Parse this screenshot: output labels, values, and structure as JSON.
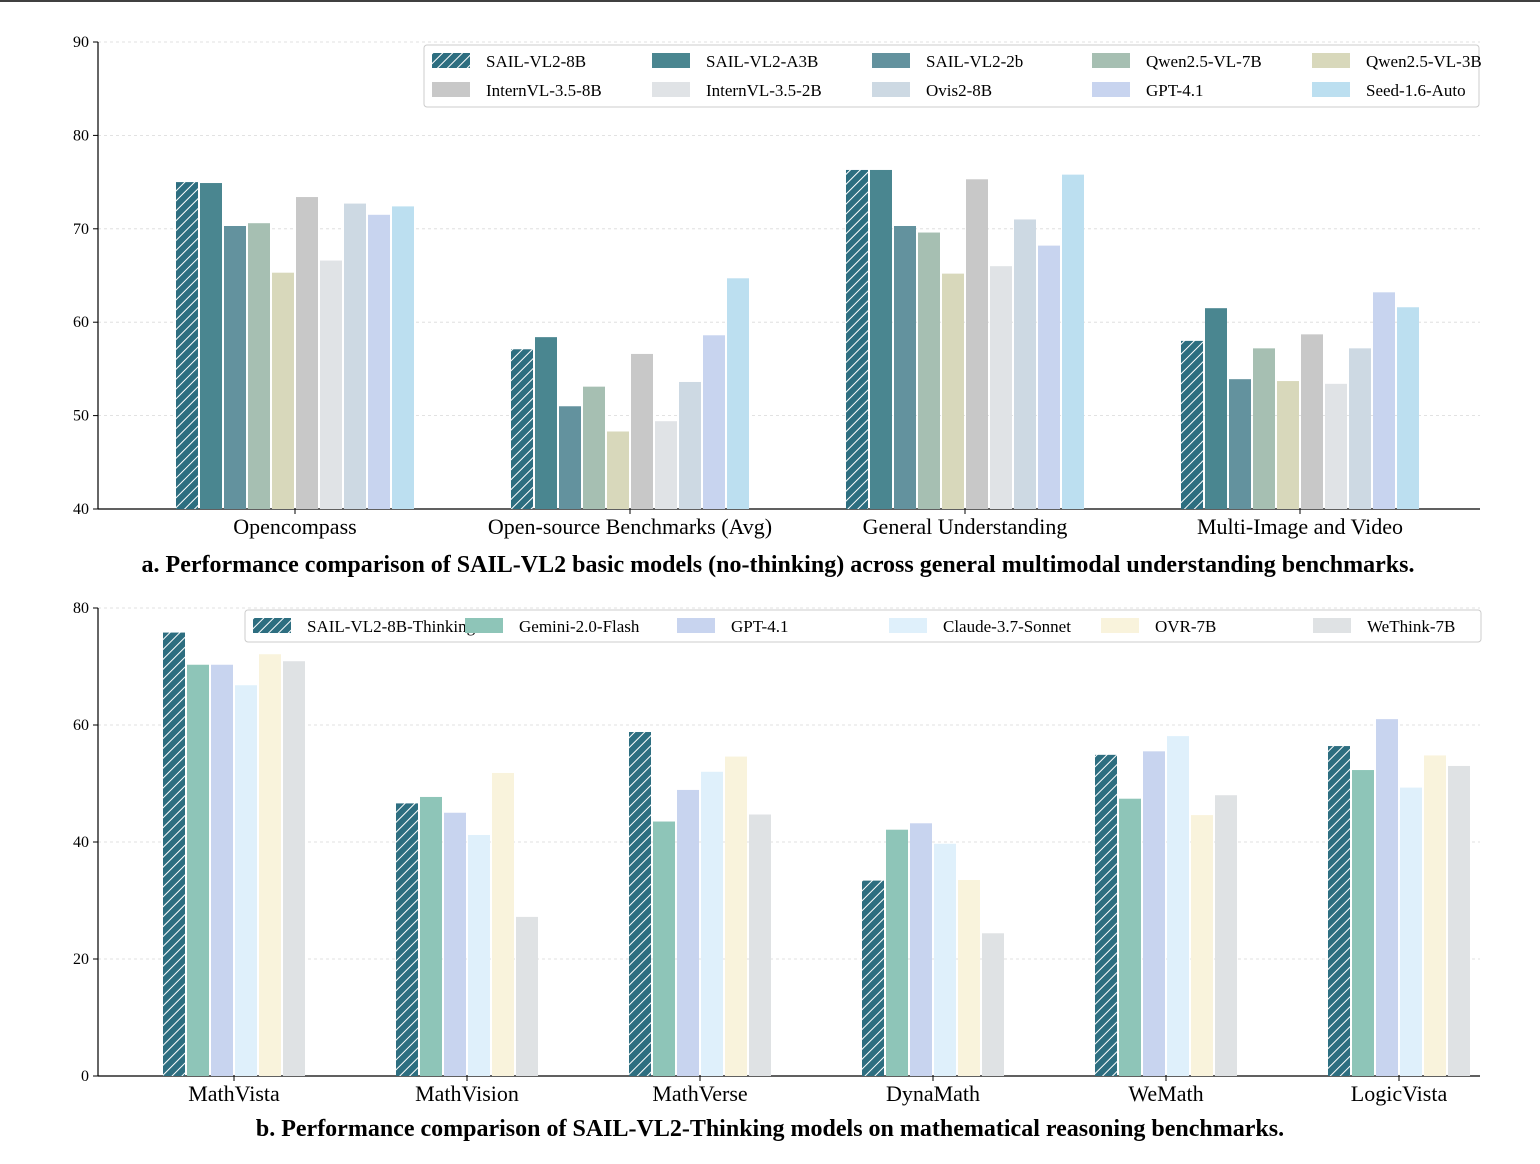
{
  "chart_data": [
    {
      "type": "bar",
      "title": "a. Performance comparison of SAIL-VL2 basic models (no-thinking) across general multimodal understanding benchmarks.",
      "categories": [
        "Opencompass",
        "Open-source Benchmarks (Avg)",
        "General Understanding",
        "Multi-Image and Video"
      ],
      "ylim": [
        40,
        90
      ],
      "yticks": [
        40,
        50,
        60,
        70,
        80,
        90
      ],
      "grid": true,
      "legend_position": "top-right",
      "series": [
        {
          "name": "SAIL-VL2-8B",
          "color": "#2d6e80",
          "hatched": true,
          "values": [
            75.0,
            57.1,
            76.3,
            58.0
          ]
        },
        {
          "name": "SAIL-VL2-A3B",
          "color": "#4a8690",
          "hatched": false,
          "values": [
            74.9,
            58.4,
            76.3,
            61.5
          ]
        },
        {
          "name": "SAIL-VL2-2b",
          "color": "#63929e",
          "hatched": false,
          "values": [
            70.3,
            51.0,
            70.3,
            53.9
          ]
        },
        {
          "name": "Qwen2.5-VL-7B",
          "color": "#a6bfb2",
          "hatched": false,
          "values": [
            70.6,
            53.1,
            69.6,
            57.2
          ]
        },
        {
          "name": "Qwen2.5-VL-3B",
          "color": "#d8d8bb",
          "hatched": false,
          "values": [
            65.3,
            48.3,
            65.2,
            53.7
          ]
        },
        {
          "name": "InternVL-3.5-8B",
          "color": "#c8c8c8",
          "hatched": false,
          "values": [
            73.4,
            56.6,
            75.3,
            58.7
          ]
        },
        {
          "name": "InternVL-3.5-2B",
          "color": "#e0e3e6",
          "hatched": false,
          "values": [
            66.6,
            49.4,
            66.0,
            53.4
          ]
        },
        {
          "name": "Ovis2-8B",
          "color": "#cdd9e3",
          "hatched": false,
          "values": [
            72.7,
            53.6,
            71.0,
            57.2
          ]
        },
        {
          "name": "GPT-4.1",
          "color": "#c8d4ef",
          "hatched": false,
          "values": [
            71.5,
            58.6,
            68.2,
            63.2
          ]
        },
        {
          "name": "Seed-1.6-Auto",
          "color": "#bcdff0",
          "hatched": false,
          "values": [
            72.4,
            64.7,
            75.8,
            61.6
          ]
        }
      ]
    },
    {
      "type": "bar",
      "title": "b. Performance comparison of SAIL-VL2-Thinking models on mathematical reasoning benchmarks.",
      "categories": [
        "MathVista",
        "MathVision",
        "MathVerse",
        "DynaMath",
        "WeMath",
        "LogicVista"
      ],
      "ylim": [
        0,
        80
      ],
      "yticks": [
        0,
        20,
        40,
        60,
        80
      ],
      "grid": true,
      "legend_position": "top",
      "series": [
        {
          "name": "SAIL-VL2-8B-Thinking",
          "color": "#2d6e80",
          "hatched": true,
          "values": [
            75.8,
            46.6,
            58.8,
            33.4,
            54.9,
            56.4
          ]
        },
        {
          "name": "Gemini-2.0-Flash",
          "color": "#8ec5b8",
          "hatched": false,
          "values": [
            70.3,
            47.7,
            43.5,
            42.1,
            47.4,
            52.3
          ]
        },
        {
          "name": "GPT-4.1",
          "color": "#c8d4ef",
          "hatched": false,
          "values": [
            70.3,
            45.0,
            48.9,
            43.2,
            55.5,
            61.0
          ]
        },
        {
          "name": "Claude-3.7-Sonnet",
          "color": "#dff0fb",
          "hatched": false,
          "values": [
            66.8,
            41.2,
            52.0,
            39.7,
            58.1,
            49.3
          ]
        },
        {
          "name": "OVR-7B",
          "color": "#f9f3dc",
          "hatched": false,
          "values": [
            72.1,
            51.8,
            54.6,
            33.5,
            44.6,
            54.8
          ]
        },
        {
          "name": "WeThink-7B",
          "color": "#dfe2e4",
          "hatched": false,
          "values": [
            70.9,
            27.2,
            44.7,
            24.4,
            48.0,
            53.0
          ]
        }
      ]
    }
  ]
}
